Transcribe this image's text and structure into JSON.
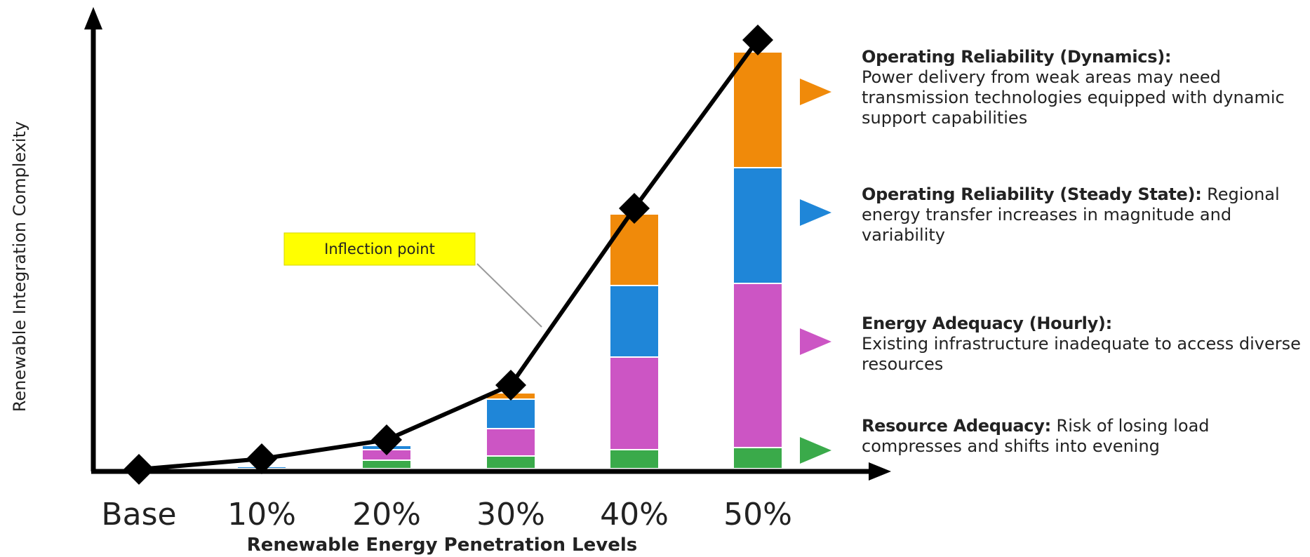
{
  "chart_data": {
    "type": "bar",
    "stacked": true,
    "categories": [
      "Base",
      "10%",
      "20%",
      "30%",
      "40%",
      "50%"
    ],
    "xlabel": "Renewable Energy Penetration Levels",
    "ylabel": "Renewable Integration Complexity",
    "ylim": [
      0,
      100
    ],
    "y_ticks_shown": false,
    "grid": false,
    "series": [
      {
        "color": "#3aaa4a",
        "values": [
          0,
          0,
          2,
          3,
          4.5,
          5
        ]
      },
      {
        "color": "#cc55c4",
        "values": [
          0,
          0,
          2.5,
          6.5,
          22,
          39
        ]
      },
      {
        "color": "#1f86d8",
        "values": [
          0,
          0.5,
          1,
          7,
          17,
          27.5
        ]
      },
      {
        "color": "#f08a0a",
        "values": [
          0,
          0,
          0,
          1.5,
          17,
          27.5
        ]
      }
    ],
    "line": {
      "color": "#000000",
      "marker": "diamond",
      "values": [
        0,
        2.5,
        7,
        20,
        62,
        102
      ]
    },
    "annotations": [
      {
        "text": "Inflection point",
        "background": "#ffff00",
        "points_to": "30%"
      }
    ]
  },
  "legend_notes": [
    {
      "title": "Operating Reliability (Dynamics):",
      "body": "Power delivery from weak areas may need transmission technologies equipped with dynamic support capabilities",
      "color": "#f08a0a"
    },
    {
      "title": "Operating Reliability (Steady State):",
      "body": "Regional energy transfer increases in magnitude and variability",
      "color": "#1f86d8"
    },
    {
      "title": "Energy Adequacy (Hourly):",
      "body": "Existing infrastructure inadequate to access diverse resources",
      "color": "#cc55c4"
    },
    {
      "title": "Resource Adequacy:",
      "body": "Risk of losing load compresses and shifts into evening",
      "color": "#3aaa4a"
    }
  ]
}
